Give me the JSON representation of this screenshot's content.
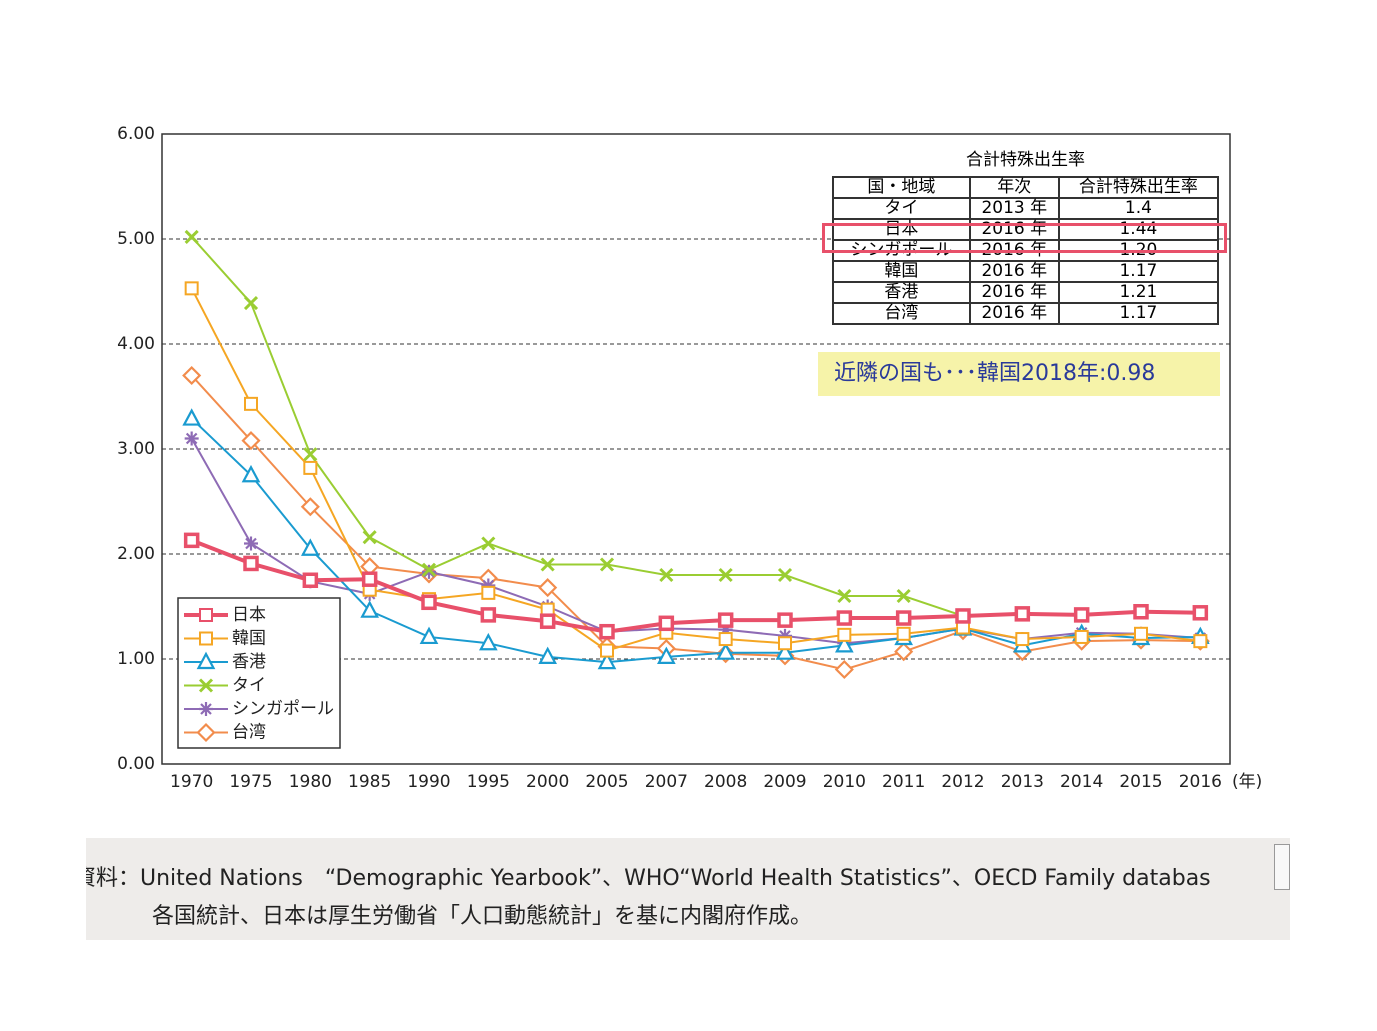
{
  "chart_data": {
    "type": "line",
    "categories": [
      "1970",
      "1975",
      "1980",
      "1985",
      "1990",
      "1995",
      "2000",
      "2005",
      "2007",
      "2008",
      "2009",
      "2010",
      "2011",
      "2012",
      "2013",
      "2014",
      "2015",
      "2016"
    ],
    "x_unit": "(年)",
    "ylim": [
      0,
      6
    ],
    "yticks": [
      {
        "value": 0,
        "label": "0.00"
      },
      {
        "value": 1,
        "label": "1.00"
      },
      {
        "value": 2,
        "label": "2.00"
      },
      {
        "value": 3,
        "label": "3.00"
      },
      {
        "value": 4,
        "label": "4.00"
      },
      {
        "value": 5,
        "label": "5.00"
      },
      {
        "value": 6,
        "label": "6.00"
      }
    ],
    "grid": true,
    "legend": "lower-left",
    "series": [
      {
        "name": "日本",
        "color": "#e8506a",
        "marker": "square",
        "line_width": 4,
        "values": [
          2.13,
          1.91,
          1.75,
          1.76,
          1.54,
          1.42,
          1.36,
          1.26,
          1.34,
          1.37,
          1.37,
          1.39,
          1.39,
          1.41,
          1.43,
          1.42,
          1.45,
          1.44
        ]
      },
      {
        "name": "韓国",
        "color": "#f5a623",
        "marker": "square",
        "line_width": 2,
        "values": [
          4.53,
          3.43,
          2.82,
          1.66,
          1.57,
          1.63,
          1.47,
          1.08,
          1.25,
          1.19,
          1.15,
          1.23,
          1.24,
          1.3,
          1.19,
          1.21,
          1.24,
          1.17
        ]
      },
      {
        "name": "香港",
        "color": "#1a9bd0",
        "marker": "triangle",
        "line_width": 2,
        "values": [
          3.29,
          2.75,
          2.05,
          1.46,
          1.21,
          1.15,
          1.02,
          0.97,
          1.02,
          1.06,
          1.06,
          1.13,
          1.2,
          1.29,
          1.13,
          1.24,
          1.2,
          1.21
        ]
      },
      {
        "name": "タイ",
        "color": "#9acd32",
        "marker": "x",
        "line_width": 2,
        "values": [
          5.02,
          4.39,
          2.95,
          2.16,
          1.85,
          2.1,
          1.9,
          1.9,
          1.8,
          1.8,
          1.8,
          1.6,
          1.6,
          1.41,
          null,
          null,
          null,
          null
        ]
      },
      {
        "name": "シンガポール",
        "color": "#8e6bb5",
        "marker": "asterisk",
        "line_width": 2,
        "values": [
          3.1,
          2.1,
          1.74,
          1.62,
          1.83,
          1.7,
          1.5,
          1.26,
          1.29,
          1.28,
          1.22,
          1.15,
          1.2,
          1.29,
          1.19,
          1.25,
          1.24,
          1.2
        ]
      },
      {
        "name": "台湾",
        "color": "#f28c4c",
        "marker": "diamond",
        "line_width": 2,
        "values": [
          3.7,
          3.08,
          2.45,
          1.88,
          1.81,
          1.77,
          1.68,
          1.12,
          1.1,
          1.05,
          1.03,
          0.9,
          1.07,
          1.27,
          1.07,
          1.17,
          1.18,
          1.17
        ]
      }
    ],
    "inset_table": {
      "title": "合計特殊出生率",
      "header": [
        "国・地域",
        "年次",
        "合計特殊出生率"
      ],
      "rows": [
        [
          "タイ",
          "2013 年",
          "1.4"
        ],
        [
          "日本",
          "2016 年",
          "1.44"
        ],
        [
          "シンガポール",
          "2016 年",
          "1.20"
        ],
        [
          "韓国",
          "2016 年",
          "1.17"
        ],
        [
          "香港",
          "2016 年",
          "1.21"
        ],
        [
          "台湾",
          "2016 年",
          "1.17"
        ]
      ]
    },
    "annotation": "近隣の国も･･･韓国2018年:0.98"
  },
  "source": {
    "label": "資料：",
    "lines": [
      "United Nations　“Demographic Yearbook”、WHO“World Health Statistics”、OECD Family databas",
      "各国統計、日本は厚生労働省「人口動態統計」を基に内閣府作成。"
    ]
  }
}
